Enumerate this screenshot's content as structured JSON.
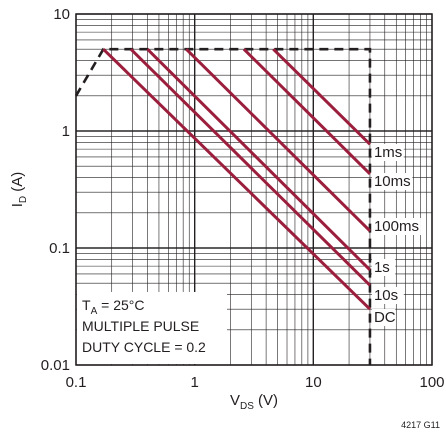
{
  "chart_data": {
    "type": "line",
    "x_scale": "log",
    "y_scale": "log",
    "xlim": [
      0.1,
      100
    ],
    "ylim": [
      0.01,
      10
    ],
    "x_tick_labels": [
      "0.1",
      "1",
      "10",
      "100"
    ],
    "y_tick_labels": [
      "0.01",
      "0.1",
      "1",
      "10"
    ],
    "xlabel": {
      "main": "V",
      "sub": "DS",
      "unit": " (V)"
    },
    "ylabel": {
      "main": "I",
      "sub": "D",
      "unit": " (A)"
    },
    "grid": "major and minor",
    "annotation_lines": [
      {
        "prefix": "T",
        "sub": "A",
        "rest": " = 25°C"
      },
      {
        "prefix": "MULTIPLE PULSE",
        "sub": "",
        "rest": ""
      },
      {
        "prefix": "DUTY CYCLE = 0.2",
        "sub": "",
        "rest": ""
      }
    ],
    "boundary": {
      "style": "dashed",
      "color": "#231f20",
      "x": [
        0.1,
        0.17,
        30,
        30
      ],
      "y": [
        2.0,
        5.0,
        5.0,
        0.01
      ]
    },
    "series": [
      {
        "name": "1ms",
        "color": "#9b1f3d",
        "x": [
          4.6,
          30
        ],
        "y": [
          5.0,
          0.77
        ]
      },
      {
        "name": "10ms",
        "color": "#9b1f3d",
        "x": [
          2.6,
          30
        ],
        "y": [
          5.0,
          0.43
        ]
      },
      {
        "name": "100ms",
        "color": "#9b1f3d",
        "x": [
          0.85,
          30
        ],
        "y": [
          5.0,
          0.14
        ]
      },
      {
        "name": "1s",
        "color": "#9b1f3d",
        "x": [
          0.4,
          30
        ],
        "y": [
          5.0,
          0.065
        ]
      },
      {
        "name": "10s",
        "color": "#9b1f3d",
        "x": [
          0.29,
          30
        ],
        "y": [
          5.0,
          0.048
        ]
      },
      {
        "name": "DC",
        "color": "#9b1f3d",
        "x": [
          0.17,
          30
        ],
        "y": [
          5.0,
          0.03
        ]
      }
    ],
    "figure_id": "4217 G11"
  }
}
